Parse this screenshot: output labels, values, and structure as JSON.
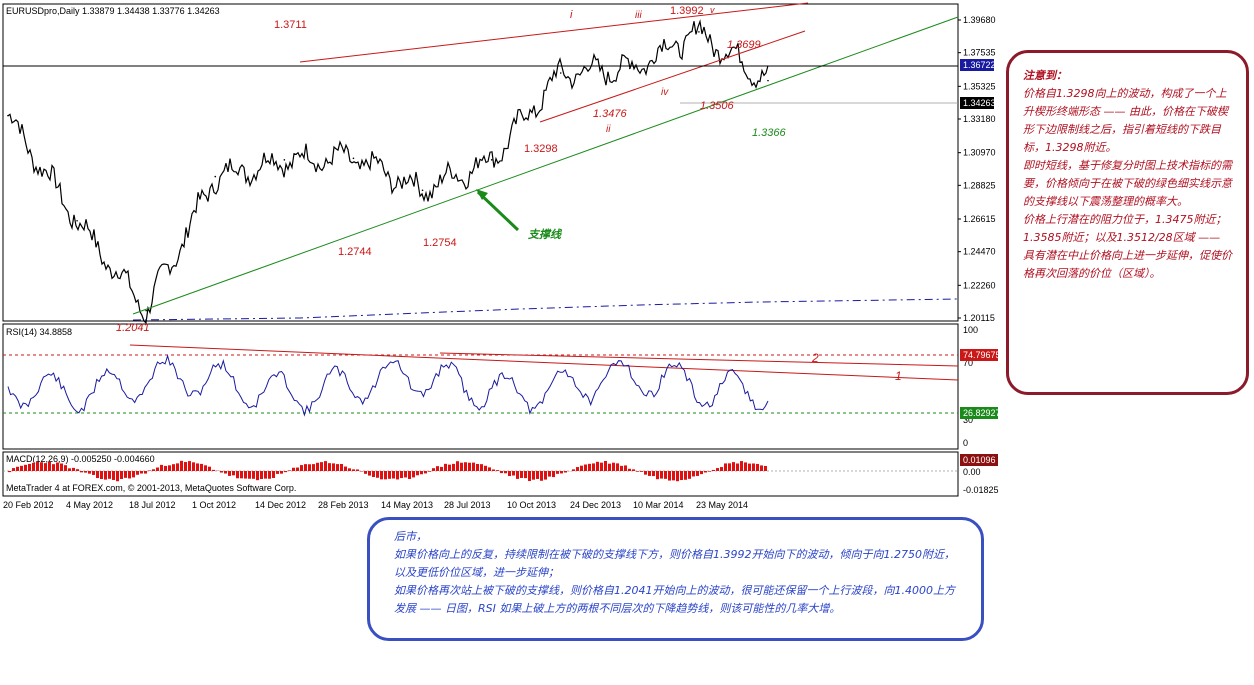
{
  "symbol_header": "EURUSDpro,Daily  1.33879 1.34438 1.33776 1.34263",
  "rsi_header": "RSI(14) 34.8858",
  "macd_header": "MACD(12,26,9) -0.005250 -0.004660",
  "copyright": "MetaTrader 4 at FOREX.com, © 2001-2013, MetaQuotes Software Corp.",
  "price_axis": [
    "1.39680",
    "1.37535",
    "1.35325",
    "1.33180",
    "1.30970",
    "1.28825",
    "1.26615",
    "1.24470",
    "1.22260",
    "1.20115"
  ],
  "price_tags": {
    "hline": "1.36722",
    "current": "1.34263"
  },
  "rsi_axis": [
    "100",
    "70",
    "30",
    "0"
  ],
  "rsi_tags": {
    "upper": "74.79675",
    "lower": "26.82927"
  },
  "macd_axis": [
    "0.00",
    "-0.01825"
  ],
  "macd_tag": "0.01096",
  "date_axis": [
    "20 Feb 2012",
    "4 May 2012",
    "18 Jul 2012",
    "1 Oct 2012",
    "14 Dec 2012",
    "28 Feb 2013",
    "14 May 2013",
    "28 Jul 2013",
    "10 Oct 2013",
    "24 Dec 2013",
    "10 Mar 2014",
    "23 May 2014"
  ],
  "price_labels": [
    "1.3711",
    "1.3992",
    "1.3699",
    "1.3476",
    "1.3506",
    "1.3298",
    "1.3366",
    "1.2744",
    "1.2754",
    "1.2041"
  ],
  "wave_labels": [
    "i",
    "iii",
    "v",
    "ii",
    "iv"
  ],
  "support_label": "支撑线",
  "rsi_line_labels": [
    "2",
    "1"
  ],
  "colors": {
    "red": "#c81818",
    "green": "#1a8a1a",
    "blue": "#1a1aa0",
    "note_red": "#b01020",
    "note_blue": "#2a44c8"
  },
  "chart_data": {
    "type": "line",
    "title": "EURUSDpro,Daily  1.33879 1.34438 1.33776 1.34263",
    "x": [
      "20 Feb 2012",
      "4 May 2012",
      "18 Jul 2012",
      "1 Oct 2012",
      "14 Dec 2012",
      "28 Feb 2013",
      "14 May 2013",
      "28 Jul 2013",
      "10 Oct 2013",
      "24 Dec 2013",
      "10 Mar 2014",
      "23 May 2014"
    ],
    "series": [
      {
        "values": [
          1.334,
          1.265,
          1.206,
          1.294,
          1.305,
          1.306,
          1.285,
          1.305,
          1.362,
          1.365,
          1.389,
          1.357
        ]
      }
    ],
    "ylim": [
      1.20115,
      1.3968
    ],
    "annotations": [
      "1.3711",
      "1.3992",
      "1.3699",
      "1.3476",
      "1.3506",
      "1.3298",
      "1.3366",
      "1.2744",
      "1.2754",
      "1.2041"
    ]
  },
  "note_right": [
    "注意到：",
    "价格自1.3298向上的波动，构成了一个上升楔形终端形态 —— 由此，价格在下破楔形下边限制线之后，指引着短线的下跌目标，1.3298附近。",
    "",
    "即时短线，基于修复分时图上技术指标的需要，价格倾向于在被下破的绿色细实线示意的支撑线以下震荡整理的概率大。",
    "",
    "价格上行潜在的阻力位于，1.3475附近；1.3585附近；以及1.3512/28区域 —— 具有潜在中止价格向上进一步延伸，促使价格再次回落的价位（区域）。"
  ],
  "note_bottom": [
    "后市，",
    "如果价格向上的反复，持续限制在被下破的支撑线下方，则价格自1.3992开始向下的波动，倾向于向1.2750附近，以及更低价位区域，进一步延伸；",
    "如果价格再次站上被下破的支撑线，则价格自1.2041开始向上的波动，很可能还保留一个上行波段，向1.4000上方发展 —— 日图，RSI 如果上破上方的两根不同层次的下降趋势线，则该可能性的几率大增。"
  ]
}
